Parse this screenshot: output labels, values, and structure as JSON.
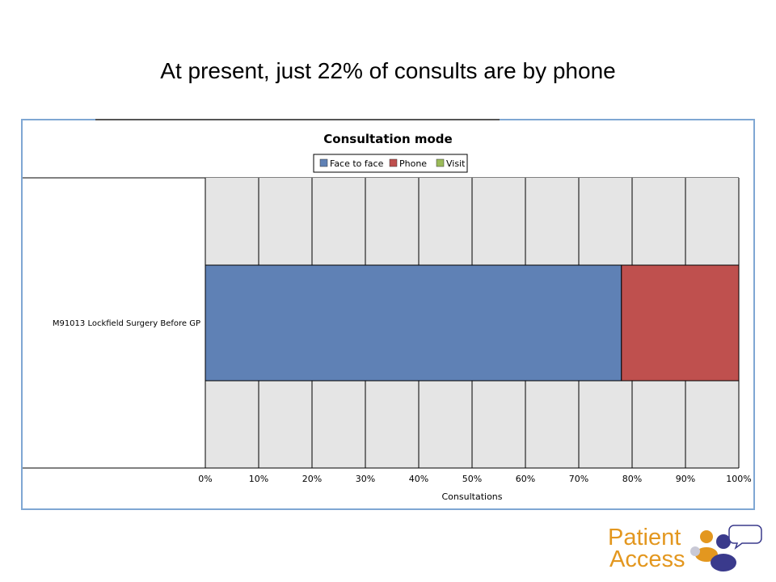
{
  "slide": {
    "title": "At present, just 22% of consults are by phone"
  },
  "logo": {
    "line1": "Patient",
    "line2": "Access",
    "color": "#e3971f"
  },
  "chart_data": {
    "type": "bar",
    "orientation": "horizontal",
    "stacked": true,
    "title": "Consultation mode",
    "xlabel": "Consultations",
    "ylabel": "",
    "xlim": [
      0,
      100
    ],
    "x_ticks": [
      "0%",
      "10%",
      "20%",
      "30%",
      "40%",
      "50%",
      "60%",
      "70%",
      "80%",
      "90%",
      "100%"
    ],
    "categories": [
      "M91013 Lockfield Surgery   Before   GP"
    ],
    "series": [
      {
        "name": "Face to face",
        "values": [
          78
        ],
        "color": "#5f81b5"
      },
      {
        "name": "Phone",
        "values": [
          22
        ],
        "color": "#bf504e"
      },
      {
        "name": "Visit",
        "values": [
          0
        ],
        "color": "#9bbb59"
      }
    ],
    "grid": true,
    "legend_position": "top"
  }
}
